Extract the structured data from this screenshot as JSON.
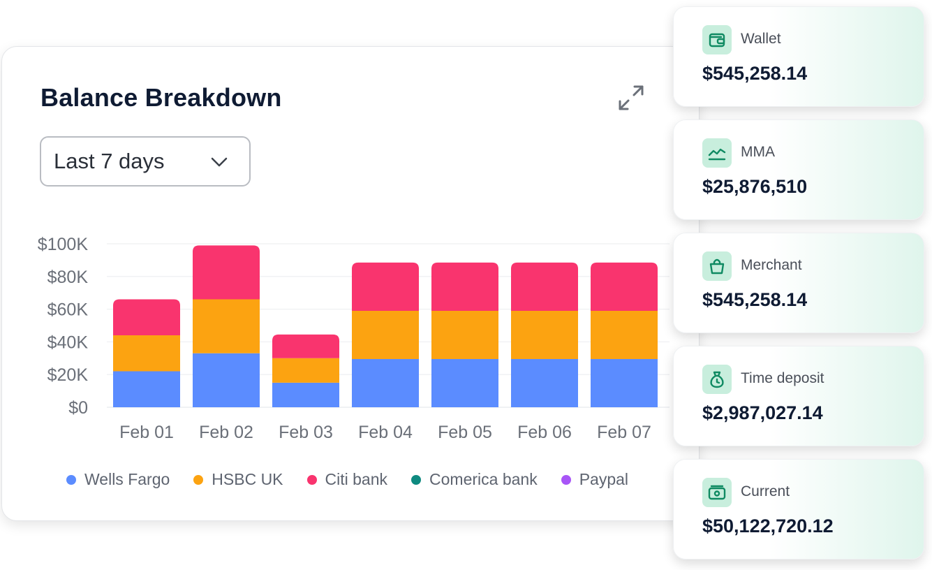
{
  "card": {
    "title": "Balance Breakdown",
    "period_select": "Last 7 days"
  },
  "chart_data": {
    "type": "bar",
    "stacked": true,
    "categories": [
      "Feb 01",
      "Feb 02",
      "Feb 03",
      "Feb 04",
      "Feb 05",
      "Feb 06",
      "Feb 07"
    ],
    "series": [
      {
        "name": "Wells Fargo",
        "color": "#5b8cff",
        "values": [
          22000,
          33000,
          15000,
          29500,
          29500,
          29500,
          29500
        ]
      },
      {
        "name": "HSBC UK",
        "color": "#fca311",
        "values": [
          22000,
          33000,
          15000,
          29500,
          29500,
          29500,
          29500
        ]
      },
      {
        "name": "Citi bank",
        "color": "#f9346e",
        "values": [
          22000,
          33000,
          14500,
          29500,
          29500,
          29500,
          29500
        ]
      },
      {
        "name": "Comerica bank",
        "color": "#0f8a80",
        "values": [
          0,
          0,
          0,
          0,
          0,
          0,
          0
        ]
      },
      {
        "name": "Paypal",
        "color": "#a855f7",
        "values": [
          0,
          0,
          0,
          0,
          0,
          0,
          0
        ]
      }
    ],
    "ylim": [
      0,
      100000
    ],
    "yticks": [
      0,
      20000,
      40000,
      60000,
      80000,
      100000
    ],
    "ytick_labels": [
      "$0",
      "$20K",
      "$40K",
      "$60K",
      "$80K",
      "$100K"
    ],
    "grid": true,
    "legend_position": "bottom"
  },
  "accounts": [
    {
      "label": "Wallet",
      "value": "$545,258.14",
      "icon": "wallet-icon"
    },
    {
      "label": "MMA",
      "value": "$25,876,510",
      "icon": "trend-line-icon"
    },
    {
      "label": "Merchant",
      "value": "$545,258.14",
      "icon": "shopping-bag-icon"
    },
    {
      "label": "Time deposit",
      "value": "$2,987,027.14",
      "icon": "money-bag-icon"
    },
    {
      "label": "Current",
      "value": "$50,122,720.12",
      "icon": "cash-icon"
    }
  ],
  "colors": {
    "icon_bg": "#c8eedd",
    "icon_stroke": "#0f8a62",
    "title": "#0f1b33"
  }
}
